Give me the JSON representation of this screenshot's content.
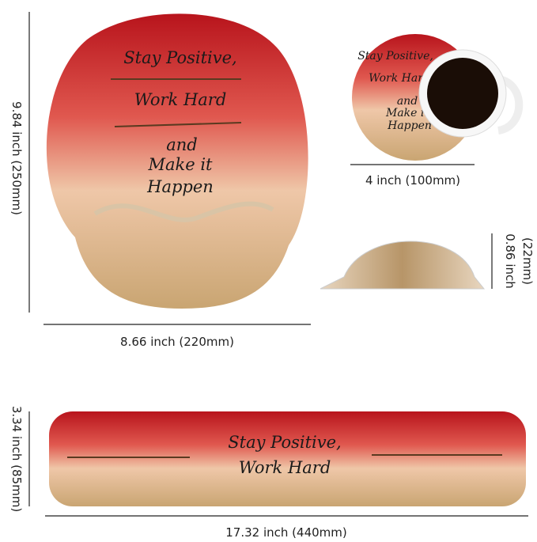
{
  "mouse_pad": {
    "lines": [
      "Stay Positive,",
      "Work Hard",
      "and",
      "Make it",
      "Happen"
    ],
    "width_label": "8.66 inch (220mm)",
    "height_label": "9.84 inch (250mm)"
  },
  "coaster": {
    "lines": [
      "Stay Positive,",
      "Work Hard",
      "and",
      "Make it",
      "Happen"
    ],
    "width_label": "4 inch (100mm)"
  },
  "profile": {
    "height_lines": [
      "0.86 inch",
      "(22mm)"
    ]
  },
  "wrist_rest": {
    "lines": [
      "Stay Positive,",
      "Work Hard"
    ],
    "width_label": "17.32 inch (440mm)",
    "height_label": "3.34 inch (85mm)"
  }
}
